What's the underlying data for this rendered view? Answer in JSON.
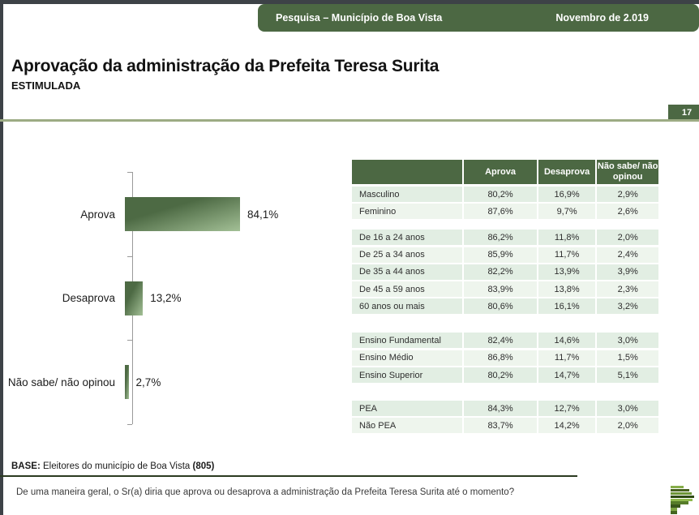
{
  "header": {
    "left": "Pesquisa – Município de Boa Vista",
    "right": "Novembro de 2.019"
  },
  "title": "Aprovação da administração da Prefeita Teresa Surita",
  "subtitle": "ESTIMULADA",
  "page_number": "17",
  "chart_data": {
    "type": "bar",
    "orientation": "horizontal",
    "categories": [
      "Aprova",
      "Desaprova",
      "Não sabe/ não opinou"
    ],
    "values": [
      84.1,
      13.2,
      2.7
    ],
    "value_labels": [
      "84,1%",
      "13,2%",
      "2,7%"
    ],
    "title": "",
    "xlabel": "",
    "ylabel": "",
    "xlim": [
      0,
      100
    ],
    "grid": false,
    "legend": false,
    "bar_color_dark": "#4d6a44",
    "bar_color_light": "#a3c096"
  },
  "table": {
    "headers": [
      "",
      "Aprova",
      "Desaprova",
      "Não sabe/ não opinou"
    ],
    "groups": [
      {
        "rows": [
          {
            "label": "Masculino",
            "values": [
              "80,2%",
              "16,9%",
              "2,9%"
            ]
          },
          {
            "label": "Feminino",
            "values": [
              "87,6%",
              "9,7%",
              "2,6%"
            ]
          }
        ]
      },
      {
        "rows": [
          {
            "label": "De 16 a 24 anos",
            "values": [
              "86,2%",
              "11,8%",
              "2,0%"
            ]
          },
          {
            "label": "De 25 a 34 anos",
            "values": [
              "85,9%",
              "11,7%",
              "2,4%"
            ]
          },
          {
            "label": "De 35 a 44 anos",
            "values": [
              "82,2%",
              "13,9%",
              "3,9%"
            ]
          },
          {
            "label": "De 45 a 59 anos",
            "values": [
              "83,9%",
              "13,8%",
              "2,3%"
            ]
          },
          {
            "label": "60 anos ou mais",
            "values": [
              "80,6%",
              "16,1%",
              "3,2%"
            ]
          }
        ]
      },
      {
        "rows": [
          {
            "label": "Ensino Fundamental",
            "values": [
              "82,4%",
              "14,6%",
              "3,0%"
            ]
          },
          {
            "label": "Ensino Médio",
            "values": [
              "86,8%",
              "11,7%",
              "1,5%"
            ]
          },
          {
            "label": "Ensino Superior",
            "values": [
              "80,2%",
              "14,7%",
              "5,1%"
            ]
          }
        ]
      },
      {
        "rows": [
          {
            "label": "PEA",
            "values": [
              "84,3%",
              "12,7%",
              "3,0%"
            ]
          },
          {
            "label": "Não PEA",
            "values": [
              "83,7%",
              "14,2%",
              "2,0%"
            ]
          }
        ]
      }
    ]
  },
  "footer": {
    "base_label": "BASE:",
    "base_text": " Eleitores do município de Boa Vista ",
    "base_value": "(805)",
    "question": "De uma maneira geral, o Sr(a) diria que aprova ou desaprova a administração da Prefeita Teresa Surita até o momento?"
  },
  "colors": {
    "green_dark": "#4c6843",
    "row_light_a": "#e2eee3",
    "row_light_b": "#eef5ed",
    "sage_line": "#9cab84",
    "frame_dark": "#3d4247"
  },
  "logo": {
    "stripes": [
      {
        "width": 16,
        "color": "#86ad4a"
      },
      {
        "width": 23,
        "color": "#47611f"
      },
      {
        "width": 26,
        "color": "#6d9537"
      },
      {
        "width": 29,
        "color": "#2e4a12"
      },
      {
        "width": 27,
        "color": "#8fb94d"
      },
      {
        "width": 22,
        "color": "#567c29"
      },
      {
        "width": 12,
        "color": "#3a571c"
      },
      {
        "width": 8,
        "color": "#7da343"
      },
      {
        "width": 8,
        "color": "#44651f"
      }
    ]
  }
}
